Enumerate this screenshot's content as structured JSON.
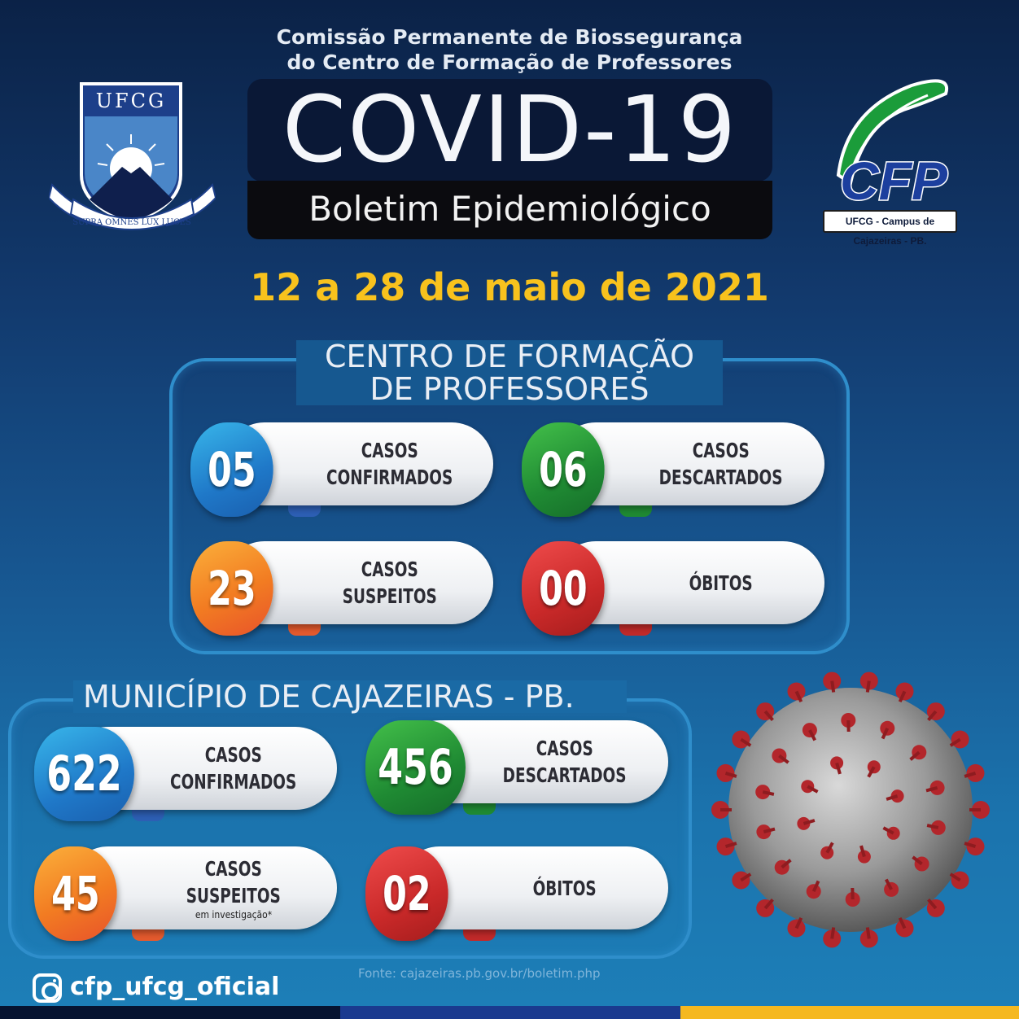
{
  "header": {
    "commission_line1": "Comissão Permanente de Biossegurança",
    "commission_line2": "do Centro de Formação de Professores",
    "title": "COVID-19",
    "subtitle": "Boletim Epidemiológico",
    "date_range": "12 a 28 de maio de 2021"
  },
  "logos": {
    "ufcg_text": "UFCG",
    "ufcg_motto": "SUPRA OMNES LUX LUCES",
    "cfp_text": "CFP",
    "cfp_tag": "UFCG - Campus de Cajazeiras - PB."
  },
  "cfp_section": {
    "title_line1": "CENTRO DE FORMAÇÃO",
    "title_line2": "DE PROFESSORES",
    "stats": [
      {
        "value": "05",
        "label1": "CASOS",
        "label2": "CONFIRMADOS",
        "color": "#2a8fd6"
      },
      {
        "value": "06",
        "label1": "CASOS",
        "label2": "DESCARTADOS",
        "color": "#25963a"
      },
      {
        "value": "23",
        "label1": "CASOS",
        "label2": "SUSPEITOS",
        "color": "#f27c22"
      },
      {
        "value": "00",
        "label1": "ÓBITOS",
        "color": "#c92929"
      }
    ]
  },
  "city_section": {
    "title": "MUNICÍPIO DE CAJAZEIRAS - PB.",
    "stats": [
      {
        "value": "622",
        "label1": "CASOS",
        "label2": "CONFIRMADOS",
        "color": "#2a8fd6"
      },
      {
        "value": "456",
        "label1": "CASOS",
        "label2": "DESCARTADOS",
        "color": "#25963a"
      },
      {
        "value": "45",
        "label1": "CASOS",
        "label2": "SUSPEITOS",
        "note": "em investigação*",
        "color": "#f27c22"
      },
      {
        "value": "02",
        "label1": "ÓBITOS",
        "color": "#c92929"
      }
    ]
  },
  "footer": {
    "instagram": "cfp_ufcg_oficial",
    "source": "Fonte: cajazeiras.pb.gov.br/boletim.php",
    "bar_colors": [
      "#061330",
      "#1a3a8f",
      "#f5b820"
    ]
  }
}
